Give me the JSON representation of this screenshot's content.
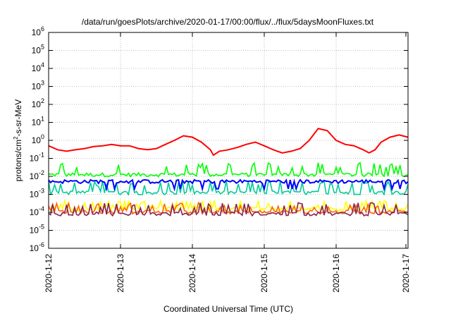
{
  "chart_data": {
    "type": "line",
    "title": "/data/run/goesPlots/archive/2020-01-17/00:00/flux/../flux/5daysMoonFluxes.txt",
    "xlabel": "Coordinated Universal Time (UTC)",
    "ylabel": "protons/cm²-s-sr-MeV",
    "yscale": "log",
    "ylim": [
      1e-06,
      1000000.0
    ],
    "xlim": [
      "2020-01-12 00:00",
      "2020-01-17 00:00"
    ],
    "x_tick_labels": [
      "2020-1-12",
      "2020-1-13",
      "2020-1-14",
      "2020-1-15",
      "2020-1-16",
      "2020-1-17"
    ],
    "y_tick_labels": [
      {
        "base": "10",
        "exp": "-6"
      },
      {
        "base": "10",
        "exp": "-5"
      },
      {
        "base": "10",
        "exp": "-4"
      },
      {
        "base": "10",
        "exp": "-3"
      },
      {
        "base": "10",
        "exp": "-2"
      },
      {
        "base": "10",
        "exp": "-1"
      },
      {
        "base": "10",
        "exp": "0"
      },
      {
        "base": "10",
        "exp": "1"
      },
      {
        "base": "10",
        "exp": "2"
      },
      {
        "base": "10",
        "exp": "3"
      },
      {
        "base": "10",
        "exp": "4"
      },
      {
        "base": "10",
        "exp": "5"
      },
      {
        "base": "10",
        "exp": "6"
      }
    ],
    "grid": true,
    "series_colors": [
      "#ff0000",
      "#00ff00",
      "#0000ff",
      "#00cc99",
      "#ffff00",
      "#ff6600",
      "#882255"
    ],
    "series": [
      {
        "color": "#ff0000",
        "points": [
          [
            "2020-01-12 00:00",
            0.5
          ],
          [
            "2020-01-12 03:00",
            0.3
          ],
          [
            "2020-01-12 06:00",
            0.25
          ],
          [
            "2020-01-12 09:00",
            0.3
          ],
          [
            "2020-01-12 12:00",
            0.35
          ],
          [
            "2020-01-12 15:00",
            0.45
          ],
          [
            "2020-01-12 18:00",
            0.5
          ],
          [
            "2020-01-12 21:00",
            0.6
          ],
          [
            "2020-01-13 00:00",
            0.5
          ],
          [
            "2020-01-13 03:00",
            0.5
          ],
          [
            "2020-01-13 06:00",
            0.35
          ],
          [
            "2020-01-13 09:00",
            0.3
          ],
          [
            "2020-01-13 12:00",
            0.35
          ],
          [
            "2020-01-13 15:00",
            0.6
          ],
          [
            "2020-01-13 18:00",
            1.0
          ],
          [
            "2020-01-13 21:00",
            1.8
          ],
          [
            "2020-01-14 00:00",
            1.5
          ],
          [
            "2020-01-14 03:00",
            0.8
          ],
          [
            "2020-01-14 06:00",
            0.3
          ],
          [
            "2020-01-14 07:00",
            0.15
          ],
          [
            "2020-01-14 09:00",
            0.25
          ],
          [
            "2020-01-14 12:00",
            0.3
          ],
          [
            "2020-01-14 15:00",
            0.4
          ],
          [
            "2020-01-14 18:00",
            0.6
          ],
          [
            "2020-01-14 21:00",
            0.8
          ],
          [
            "2020-01-15 00:00",
            0.5
          ],
          [
            "2020-01-15 03:00",
            0.3
          ],
          [
            "2020-01-15 06:00",
            0.2
          ],
          [
            "2020-01-15 09:00",
            0.25
          ],
          [
            "2020-01-15 12:00",
            0.35
          ],
          [
            "2020-01-15 15:00",
            1.0
          ],
          [
            "2020-01-15 18:00",
            4.5
          ],
          [
            "2020-01-15 21:00",
            3.5
          ],
          [
            "2020-01-16 00:00",
            1.0
          ],
          [
            "2020-01-16 03:00",
            0.6
          ],
          [
            "2020-01-16 06:00",
            0.5
          ],
          [
            "2020-01-16 09:00",
            0.3
          ],
          [
            "2020-01-16 11:00",
            0.2
          ],
          [
            "2020-01-16 13:00",
            0.3
          ],
          [
            "2020-01-16 15:00",
            0.8
          ],
          [
            "2020-01-16 18:00",
            1.5
          ],
          [
            "2020-01-16 21:00",
            2.0
          ],
          [
            "2020-01-17 00:00",
            1.5
          ]
        ]
      },
      {
        "color": "#00ff00",
        "baseline": 0.012,
        "spike": 0.05,
        "points_per_day": 36
      },
      {
        "color": "#0000ff",
        "baseline": 0.005,
        "dip": 0.002
      },
      {
        "color": "#00cc99",
        "baseline": 0.0012,
        "spike": 0.005
      },
      {
        "color": "#ffff00",
        "baseline": 0.00015,
        "spike": 0.0004
      },
      {
        "color": "#ff6600",
        "baseline": 0.0001,
        "spike": 0.0003
      },
      {
        "color": "#882255",
        "baseline": 8e-05,
        "spike": 0.0003
      }
    ]
  }
}
